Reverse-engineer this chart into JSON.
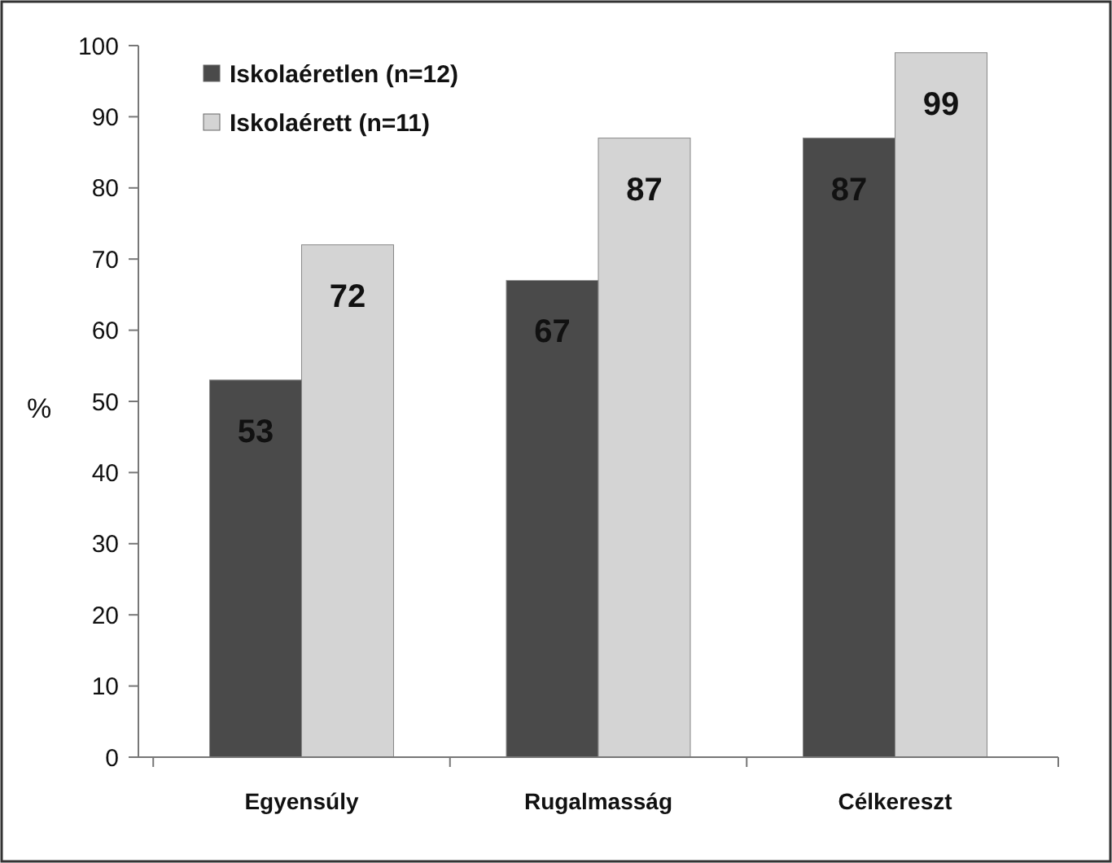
{
  "chart_data": {
    "type": "bar",
    "ylabel": "%",
    "categories": [
      "Egyensúly",
      "Rugalmasság",
      "Célkereszt"
    ],
    "series": [
      {
        "name": "Iskolaéretlen (n=12)",
        "color": "#4a4a4a",
        "values": [
          53,
          67,
          87
        ]
      },
      {
        "name": "Iskolaérett (n=11)",
        "color": "#d4d4d4",
        "values": [
          72,
          87,
          99
        ]
      }
    ],
    "ylim": [
      0,
      100
    ],
    "yticks": [
      0,
      10,
      20,
      30,
      40,
      50,
      60,
      70,
      80,
      90,
      100
    ],
    "data_labels": true,
    "legend": "top left",
    "grid": false
  }
}
